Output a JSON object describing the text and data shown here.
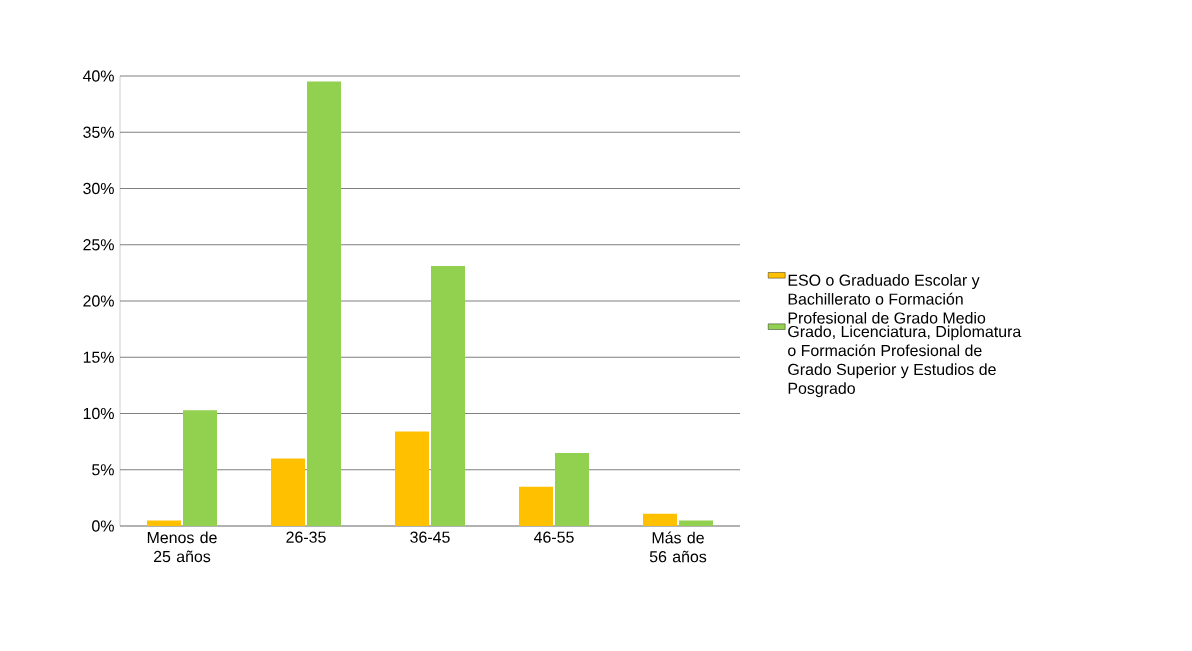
{
  "chart_data": {
    "type": "bar",
    "categories": [
      "Menos de 25 años",
      "26-35",
      "36-45",
      "46-55",
      "Más de 56 años"
    ],
    "series": [
      {
        "name": "ESO o Graduado Escolar y Bachillerato o Formación Profesional de Grado Medio",
        "color": "#ffc000",
        "values": [
          0.5,
          6.0,
          8.4,
          3.5,
          1.1
        ]
      },
      {
        "name": "Grado, Licenciatura, Diplomatura o Formación Profesional de Grado Superior y Estudios de Posgrado",
        "color": "#92d050",
        "values": [
          10.3,
          39.5,
          23.1,
          6.5,
          0.5
        ]
      }
    ],
    "ylim": [
      0,
      40
    ],
    "yticks": [
      {
        "value": 0,
        "label": "0%"
      },
      {
        "value": 5,
        "label": "5%"
      },
      {
        "value": 10,
        "label": "10%"
      },
      {
        "value": 15,
        "label": "15%"
      },
      {
        "value": 20,
        "label": "20%"
      },
      {
        "value": 25,
        "label": "25%"
      },
      {
        "value": 30,
        "label": "30%"
      },
      {
        "value": 35,
        "label": "35%"
      },
      {
        "value": 40,
        "label": "40%"
      }
    ],
    "grid": "y",
    "legend": "right"
  }
}
